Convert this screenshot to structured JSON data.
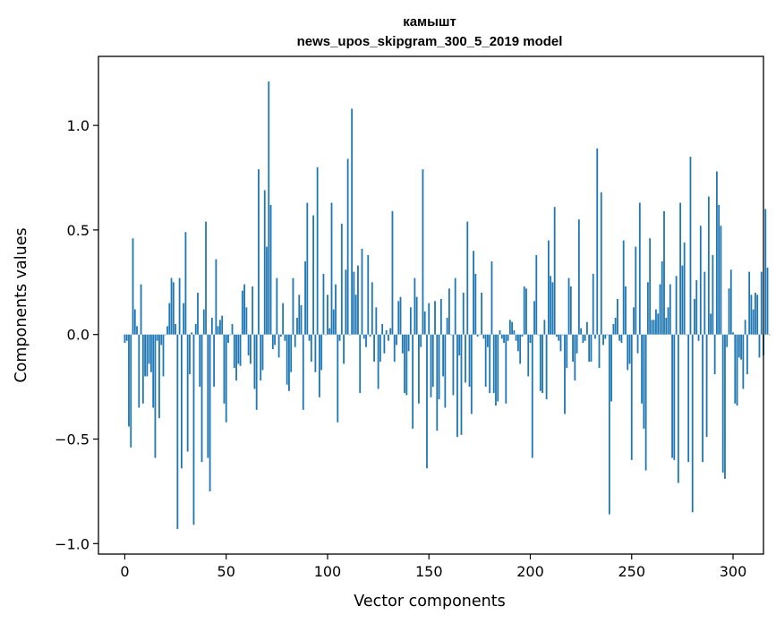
{
  "chart_data": {
    "type": "bar",
    "title_line1": "камышт",
    "title_line2": "news_upos_skipgram_300_5_2019 model",
    "xlabel": "Vector components",
    "ylabel": "Components values",
    "xlim": [
      -13,
      315
    ],
    "ylim": [
      -1.05,
      1.33
    ],
    "xticks": [
      0,
      50,
      100,
      150,
      200,
      250,
      300
    ],
    "xtick_labels": [
      "0",
      "50",
      "100",
      "150",
      "200",
      "250",
      "300"
    ],
    "yticks": [
      -1.0,
      -0.5,
      0.0,
      0.5,
      1.0
    ],
    "ytick_labels": [
      "−1.0",
      "−0.5",
      "0.0",
      "0.5",
      "1.0"
    ],
    "bar_color": "#1f77b4",
    "values": [
      -0.04,
      -0.03,
      -0.44,
      -0.54,
      0.46,
      0.12,
      0.04,
      -0.35,
      0.24,
      -0.33,
      -0.2,
      -0.2,
      -0.14,
      -0.18,
      -0.35,
      -0.59,
      -0.03,
      -0.4,
      -0.05,
      -0.2,
      0.0,
      0.04,
      0.15,
      0.27,
      0.25,
      0.05,
      -0.93,
      0.27,
      -0.64,
      0.15,
      0.49,
      -0.56,
      -0.19,
      0.01,
      -0.91,
      0.05,
      0.2,
      -0.25,
      -0.61,
      0.12,
      0.54,
      -0.59,
      -0.75,
      0.08,
      -0.25,
      0.36,
      0.04,
      0.07,
      0.09,
      -0.33,
      -0.42,
      -0.04,
      0.0,
      0.05,
      -0.16,
      -0.22,
      -0.14,
      -0.15,
      0.21,
      0.24,
      0.13,
      -0.1,
      -0.14,
      0.23,
      -0.26,
      -0.36,
      0.79,
      -0.22,
      -0.17,
      0.69,
      0.42,
      1.21,
      0.62,
      -0.07,
      -0.05,
      0.27,
      -0.11,
      -0.01,
      0.15,
      -0.03,
      -0.24,
      -0.27,
      -0.18,
      0.27,
      -0.06,
      0.08,
      0.19,
      0.14,
      -0.36,
      0.35,
      0.63,
      -0.03,
      -0.13,
      0.57,
      -0.18,
      0.8,
      -0.3,
      -0.17,
      0.29,
      0.0,
      0.19,
      0.03,
      0.63,
      0.12,
      0.24,
      -0.42,
      -0.03,
      0.53,
      -0.14,
      0.31,
      0.84,
      0.0,
      1.08,
      0.3,
      0.19,
      0.33,
      -0.28,
      0.41,
      -0.02,
      -0.06,
      0.38,
      -0.01,
      0.25,
      -0.13,
      0.13,
      -0.26,
      -0.13,
      0.05,
      -0.09,
      0.02,
      -0.03,
      0.03,
      0.59,
      -0.13,
      -0.05,
      0.16,
      0.18,
      -0.09,
      -0.28,
      -0.29,
      -0.08,
      0.13,
      -0.45,
      0.27,
      0.18,
      -0.33,
      -0.06,
      0.79,
      0.11,
      -0.64,
      0.15,
      -0.3,
      -0.25,
      0.16,
      -0.46,
      -0.31,
      0.17,
      -0.2,
      -0.35,
      0.08,
      0.22,
      0.0,
      -0.29,
      0.27,
      -0.49,
      -0.1,
      -0.48,
      0.2,
      -0.23,
      0.54,
      -0.25,
      -0.38,
      0.4,
      0.29,
      -0.01,
      0.0,
      0.2,
      -0.02,
      -0.25,
      -0.06,
      -0.28,
      0.35,
      -0.28,
      -0.34,
      -0.32,
      0.02,
      -0.02,
      -0.04,
      -0.33,
      -0.03,
      0.07,
      0.06,
      0.02,
      -0.03,
      -0.08,
      -0.14,
      -0.01,
      0.23,
      0.22,
      -0.2,
      -0.04,
      -0.59,
      0.16,
      0.38,
      0.0,
      -0.27,
      -0.28,
      0.07,
      -0.31,
      0.45,
      0.28,
      0.25,
      0.61,
      -0.01,
      -0.03,
      -0.08,
      0.0,
      -0.38,
      -0.16,
      0.27,
      0.23,
      -0.13,
      -0.22,
      -0.09,
      0.55,
      0.03,
      -0.04,
      -0.03,
      0.06,
      -0.13,
      -0.13,
      0.29,
      -0.02,
      0.89,
      -0.16,
      0.68,
      -0.05,
      -0.02,
      0.0,
      -0.86,
      -0.32,
      0.05,
      0.08,
      0.17,
      -0.03,
      -0.04,
      0.45,
      0.23,
      -0.17,
      -0.14,
      -0.6,
      0.13,
      0.42,
      -0.09,
      0.63,
      -0.33,
      -0.45,
      -0.65,
      0.25,
      0.46,
      0.07,
      0.07,
      0.12,
      0.1,
      0.24,
      0.35,
      0.59,
      0.08,
      0.13,
      0.24,
      -0.59,
      -0.6,
      0.28,
      -0.71,
      0.63,
      0.33,
      0.44,
      0.0,
      -0.61,
      0.85,
      -0.85,
      0.17,
      0.26,
      -0.03,
      0.52,
      -0.61,
      0.3,
      -0.49,
      0.66,
      0.1,
      0.38,
      -0.19,
      0.78,
      0.62,
      0.52,
      -0.66,
      -0.69,
      -0.06,
      0.22,
      0.31,
      0.01,
      -0.33,
      -0.34,
      -0.11,
      -0.12,
      -0.26,
      0.07,
      -0.19,
      0.3,
      0.19,
      0.12,
      0.2,
      0.19,
      -0.11,
      0.3,
      -0.1,
      0.6,
      0.32,
      0.0
    ]
  }
}
